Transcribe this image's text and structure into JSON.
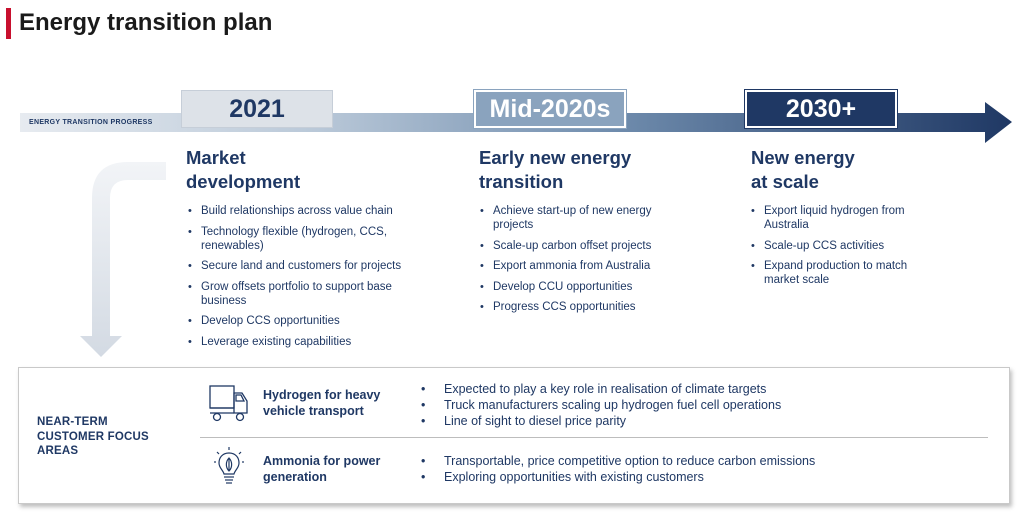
{
  "title": "Energy transition plan",
  "progress_label": "ENERGY TRANSITION PROGRESS",
  "colors": {
    "accent": "#c8102e",
    "navy": "#1f3864",
    "mid_blue": "#8aa3be",
    "light_gray": "#dde2e8"
  },
  "stages": [
    {
      "year": "2021",
      "title_line1": "Market",
      "title_line2": "development",
      "bullets": [
        "Build relationships across value chain",
        "Technology flexible (hydrogen, CCS, renewables)",
        "Secure land and customers for projects",
        "Grow offsets portfolio to support base business",
        "Develop CCS opportunities",
        "Leverage existing capabilities"
      ]
    },
    {
      "year": "Mid-2020s",
      "title_line1": "Early new energy",
      "title_line2": "transition",
      "bullets": [
        "Achieve start-up of new energy projects",
        "Scale-up carbon offset projects",
        "Export ammonia from Australia",
        "Develop CCU opportunities",
        "Progress CCS opportunities"
      ]
    },
    {
      "year": "2030+",
      "title_line1": "New energy",
      "title_line2": "at scale",
      "bullets": [
        "Export liquid hydrogen from Australia",
        "Scale-up CCS activities",
        "Expand production to match market scale"
      ]
    }
  ],
  "focus": {
    "label_line1": "NEAR-TERM",
    "label_line2": "CUSTOMER FOCUS",
    "label_line3": "AREAS",
    "areas": [
      {
        "icon": "truck-icon",
        "name_line1": "Hydrogen for heavy",
        "name_line2": "vehicle transport",
        "bullets": [
          "Expected to play a key role in realisation of climate targets",
          "Truck manufacturers scaling up hydrogen fuel cell operations",
          "Line of sight to diesel price parity"
        ]
      },
      {
        "icon": "lightbulb-leaf-icon",
        "name_line1": "Ammonia for power",
        "name_line2": "generation",
        "bullets": [
          "Transportable, price competitive option to reduce carbon emissions",
          "Exploring opportunities with existing customers"
        ]
      }
    ]
  }
}
